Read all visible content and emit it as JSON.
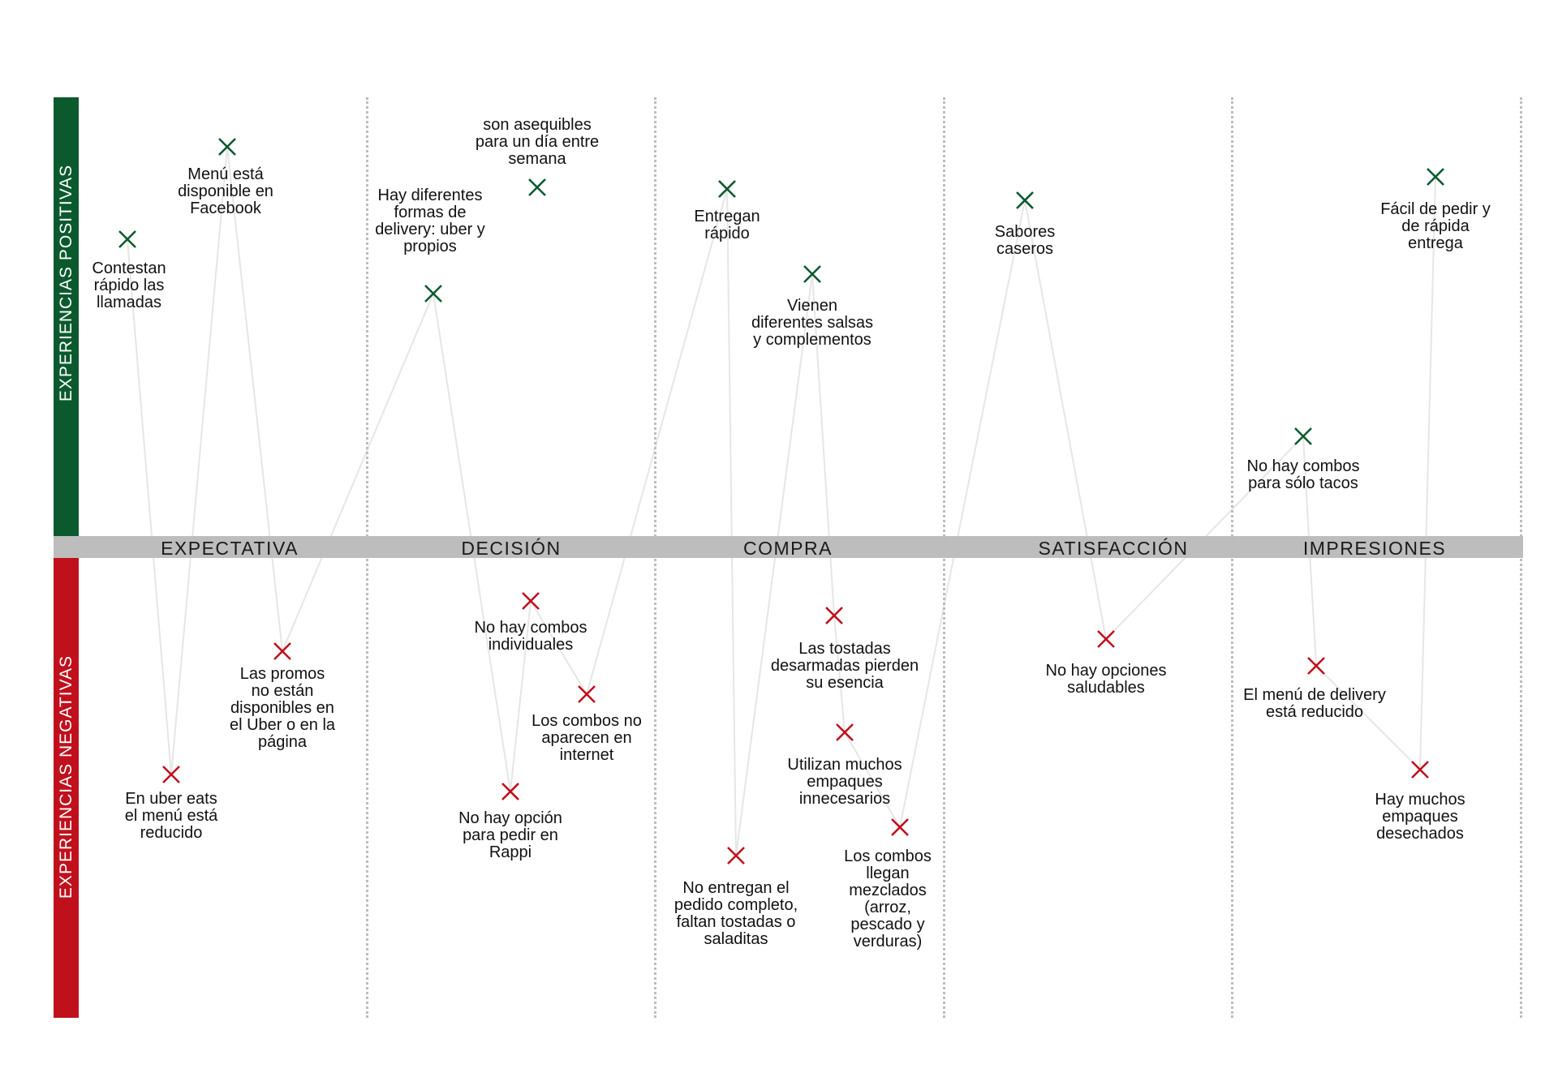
{
  "diagram": {
    "positive_label": "EXPERIENCIAS POSITIVAS",
    "negative_label": "EXPERIENCIAS NEGATIVAS",
    "colors": {
      "positive": "#0b5a2e",
      "negative": "#c0101c",
      "axis": "#bdbdbd",
      "connector": "#e6e6e6"
    },
    "stages": [
      "EXPECTATIVA",
      "DECISIÓN",
      "COMPRA",
      "SATISFACCIÓN",
      "IMPRESIONES"
    ],
    "marker_icon": "x-mark-icon",
    "points": [
      {
        "id": "p1",
        "type": "positive",
        "stage": "EXPECTATIVA",
        "lines": [
          "Contestan",
          "rápido las",
          "llamadas"
        ]
      },
      {
        "id": "p2",
        "type": "positive",
        "stage": "EXPECTATIVA",
        "lines": [
          "Menú está",
          "disponible en",
          "Facebook"
        ]
      },
      {
        "id": "n1",
        "type": "negative",
        "stage": "EXPECTATIVA",
        "lines": [
          "Las promos",
          "no están",
          "disponibles en",
          "el Uber o en la",
          "página"
        ]
      },
      {
        "id": "n2",
        "type": "negative",
        "stage": "EXPECTATIVA",
        "lines": [
          "En uber eats",
          "el menú está",
          "reducido"
        ]
      },
      {
        "id": "p3",
        "type": "positive",
        "stage": "DECISIÓN",
        "lines": [
          "son asequibles",
          "para un día entre",
          "semana"
        ]
      },
      {
        "id": "p4",
        "type": "positive",
        "stage": "DECISIÓN",
        "lines": [
          "Hay diferentes",
          "formas de",
          "delivery: uber y",
          "propios"
        ]
      },
      {
        "id": "n3",
        "type": "negative",
        "stage": "DECISIÓN",
        "lines": [
          "No hay combos",
          "individuales"
        ]
      },
      {
        "id": "n4",
        "type": "negative",
        "stage": "DECISIÓN",
        "lines": [
          "Los combos no",
          "aparecen en",
          "internet"
        ]
      },
      {
        "id": "n5",
        "type": "negative",
        "stage": "DECISIÓN",
        "lines": [
          "No hay opción",
          "para pedir en",
          "Rappi"
        ]
      },
      {
        "id": "p5",
        "type": "positive",
        "stage": "COMPRA",
        "lines": [
          "Entregan",
          "rápido"
        ]
      },
      {
        "id": "p6",
        "type": "positive",
        "stage": "COMPRA",
        "lines": [
          "Vienen",
          "diferentes salsas",
          "y complementos"
        ]
      },
      {
        "id": "n6",
        "type": "negative",
        "stage": "COMPRA",
        "lines": [
          "Las tostadas",
          "desarmadas pierden",
          "su esencia"
        ]
      },
      {
        "id": "n7",
        "type": "negative",
        "stage": "COMPRA",
        "lines": [
          "Utilizan muchos",
          "empaques",
          "innecesarios"
        ]
      },
      {
        "id": "n8",
        "type": "negative",
        "stage": "COMPRA",
        "lines": [
          "Los combos",
          "llegan",
          "mezclados",
          "(arroz,",
          "pescado y",
          "verduras)"
        ]
      },
      {
        "id": "n9",
        "type": "negative",
        "stage": "COMPRA",
        "lines": [
          "No entregan el",
          "pedido completo,",
          "faltan tostadas o",
          "saladitas"
        ]
      },
      {
        "id": "p7",
        "type": "positive",
        "stage": "SATISFACCIÓN",
        "lines": [
          "Sabores",
          "caseros"
        ]
      },
      {
        "id": "n10",
        "type": "negative",
        "stage": "SATISFACCIÓN",
        "lines": [
          "No hay opciones",
          "saludables"
        ]
      },
      {
        "id": "p8",
        "type": "positive",
        "stage": "IMPRESIONES",
        "lines": [
          "Fácil de pedir y",
          "de rápida",
          "entrega"
        ]
      },
      {
        "id": "p9",
        "type": "positive",
        "stage": "IMPRESIONES",
        "lines": [
          "No hay combos",
          "para sólo tacos"
        ]
      },
      {
        "id": "n11",
        "type": "negative",
        "stage": "IMPRESIONES",
        "lines": [
          "El menú de delivery",
          "está reducido"
        ]
      },
      {
        "id": "n12",
        "type": "negative",
        "stage": "IMPRESIONES",
        "lines": [
          "Hay muchos",
          "empaques",
          "desechados"
        ]
      }
    ]
  }
}
